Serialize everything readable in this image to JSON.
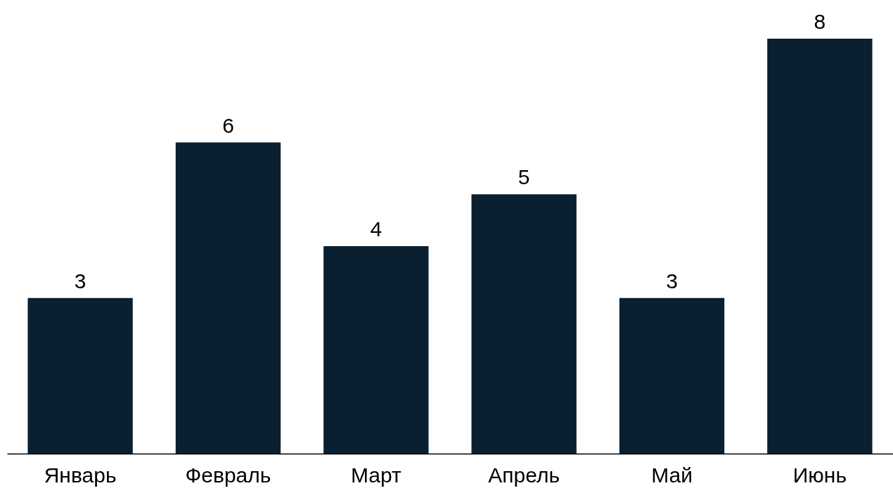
{
  "chart_data": {
    "type": "bar",
    "categories": [
      "Январь",
      "Февраль",
      "Март",
      "Апрель",
      "Май",
      "Июнь"
    ],
    "values": [
      3,
      6,
      4,
      5,
      3,
      8
    ],
    "color": "#0a1f30",
    "data_labels": true
  }
}
